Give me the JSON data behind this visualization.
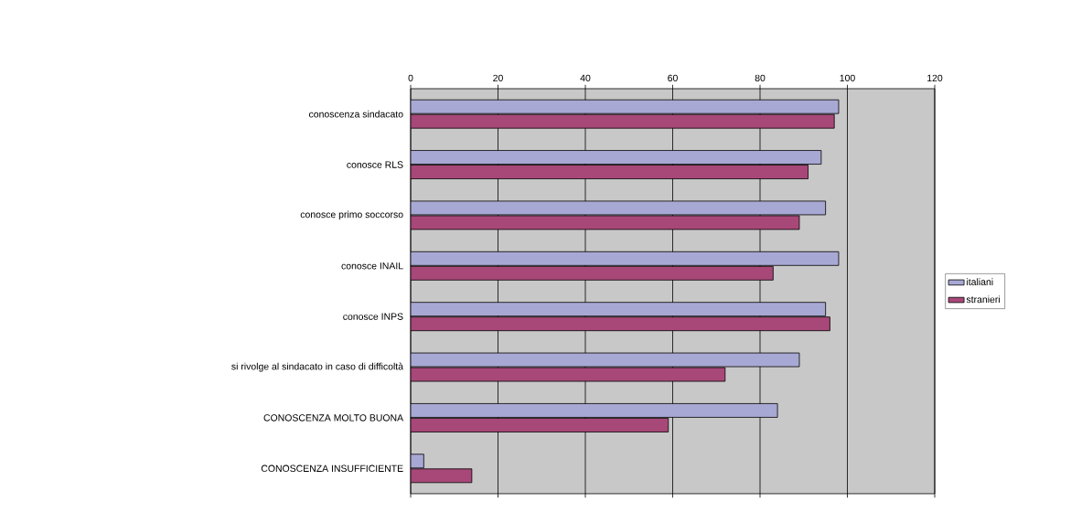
{
  "chart_data": {
    "type": "bar",
    "orientation": "horizontal",
    "categories": [
      "conoscenza sindacato",
      "conosce RLS",
      "conosce primo soccorso",
      "conosce INAIL",
      "conosce INPS",
      "si rivolge al sindacato in caso di difficoltà",
      "CONOSCENZA MOLTO BUONA",
      "CONOSCENZA INSUFFICIENTE"
    ],
    "series": [
      {
        "name": "italiani",
        "color": "#a8a8d4",
        "values": [
          98,
          94,
          95,
          98,
          95,
          89,
          84,
          3
        ]
      },
      {
        "name": "stranieri",
        "color": "#a84878",
        "values": [
          97,
          91,
          89,
          83,
          96,
          72,
          59,
          14
        ]
      }
    ],
    "xlim": [
      0,
      120
    ],
    "xticks": [
      0,
      20,
      40,
      60,
      80,
      100,
      120
    ],
    "grid": "x",
    "legend": "right"
  }
}
